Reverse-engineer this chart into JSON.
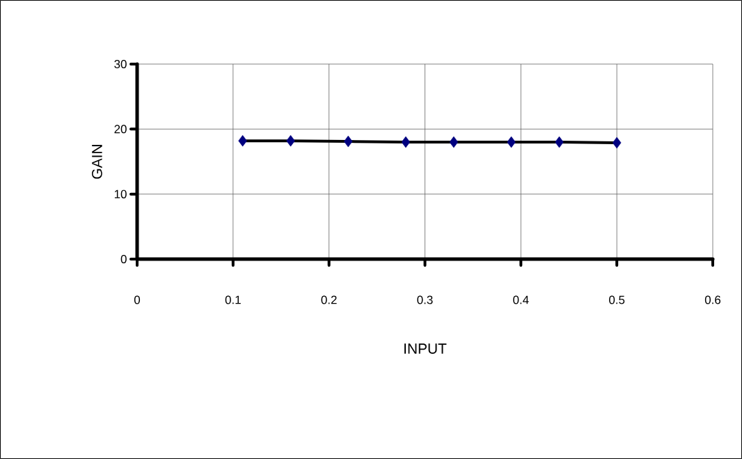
{
  "chart_data": {
    "type": "line",
    "xlabel": "INPUT",
    "ylabel": "GAIN",
    "x": [
      0.11,
      0.16,
      0.22,
      0.28,
      0.33,
      0.39,
      0.44,
      0.5
    ],
    "series": [
      {
        "color": "#000080",
        "values": [
          18.2,
          18.2,
          18.1,
          18.0,
          18.0,
          18.0,
          18.0,
          17.9
        ]
      }
    ],
    "xlim": [
      0,
      0.6
    ],
    "xticks": [
      0,
      0.1,
      0.2,
      0.3,
      0.4,
      0.5,
      0.6
    ],
    "ylim": [
      0,
      30
    ],
    "yticks": [
      0,
      10,
      20,
      30
    ],
    "grid": true,
    "marker": "diamond",
    "line_style": "solid"
  }
}
